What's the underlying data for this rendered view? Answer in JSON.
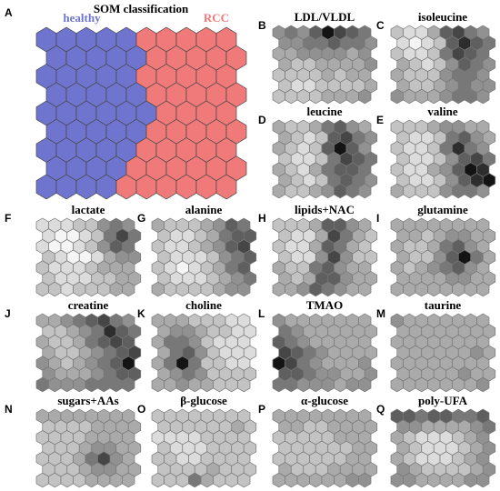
{
  "title": "SOM classification",
  "classification": {
    "letter": "A",
    "classes": [
      {
        "name": "healthy",
        "color": "#6f75cf"
      },
      {
        "name": "RCC",
        "color": "#f07a7a"
      }
    ],
    "grid": [
      [
        0,
        0,
        0,
        0,
        0,
        1,
        1,
        1,
        1,
        1
      ],
      [
        0,
        0,
        0,
        0,
        0,
        1,
        1,
        1,
        1,
        1
      ],
      [
        0,
        0,
        0,
        0,
        0,
        1,
        1,
        1,
        1,
        1
      ],
      [
        0,
        0,
        0,
        0,
        0,
        1,
        1,
        1,
        1,
        1
      ],
      [
        0,
        0,
        0,
        0,
        0,
        0,
        1,
        1,
        1,
        1
      ],
      [
        0,
        0,
        0,
        0,
        0,
        1,
        1,
        1,
        1,
        1
      ],
      [
        0,
        0,
        0,
        0,
        0,
        1,
        1,
        1,
        1,
        1
      ],
      [
        0,
        0,
        0,
        0,
        1,
        1,
        1,
        1,
        1,
        1
      ],
      [
        0,
        0,
        0,
        0,
        1,
        1,
        1,
        1,
        1,
        1
      ]
    ]
  },
  "panels": [
    {
      "letter": "B",
      "title": "LDL/VLDL",
      "shades": [
        [
          4,
          5,
          4,
          6,
          9,
          7,
          6,
          5
        ],
        [
          4,
          4,
          5,
          5,
          6,
          5,
          5,
          4
        ],
        [
          3,
          3,
          4,
          4,
          4,
          4,
          3,
          4
        ],
        [
          3,
          2,
          2,
          3,
          3,
          3,
          3,
          4
        ],
        [
          2,
          2,
          2,
          2,
          3,
          2,
          3,
          3
        ],
        [
          2,
          1,
          1,
          2,
          2,
          2,
          2,
          3
        ],
        [
          2,
          2,
          2,
          2,
          3,
          3,
          3,
          4
        ]
      ]
    },
    {
      "letter": "C",
      "title": "isoleucine",
      "shades": [
        [
          2,
          1,
          1,
          3,
          6,
          7,
          5,
          4
        ],
        [
          1,
          0,
          1,
          2,
          6,
          8,
          6,
          5
        ],
        [
          2,
          1,
          1,
          2,
          5,
          7,
          6,
          5
        ],
        [
          3,
          2,
          1,
          2,
          4,
          6,
          5,
          4
        ],
        [
          3,
          2,
          2,
          2,
          4,
          5,
          5,
          4
        ],
        [
          3,
          2,
          2,
          3,
          4,
          5,
          4,
          4
        ],
        [
          4,
          3,
          3,
          3,
          4,
          5,
          5,
          4
        ]
      ]
    },
    {
      "letter": "D",
      "title": "leucine",
      "shades": [
        [
          3,
          2,
          2,
          3,
          5,
          6,
          4,
          3
        ],
        [
          3,
          2,
          1,
          2,
          6,
          7,
          5,
          4
        ],
        [
          3,
          2,
          1,
          2,
          6,
          9,
          6,
          4
        ],
        [
          2,
          1,
          1,
          2,
          5,
          7,
          6,
          5
        ],
        [
          3,
          2,
          1,
          3,
          5,
          6,
          6,
          5
        ],
        [
          3,
          2,
          1,
          2,
          5,
          6,
          5,
          4
        ],
        [
          3,
          2,
          2,
          3,
          4,
          6,
          5,
          4
        ]
      ]
    },
    {
      "letter": "E",
      "title": "valine",
      "shades": [
        [
          2,
          2,
          2,
          3,
          4,
          4,
          3,
          3
        ],
        [
          2,
          1,
          1,
          2,
          5,
          6,
          4,
          3
        ],
        [
          2,
          1,
          1,
          2,
          5,
          8,
          5,
          4
        ],
        [
          2,
          1,
          1,
          2,
          4,
          6,
          7,
          5
        ],
        [
          2,
          1,
          1,
          3,
          4,
          6,
          9,
          8
        ],
        [
          2,
          1,
          1,
          2,
          4,
          6,
          8,
          9
        ],
        [
          3,
          2,
          2,
          2,
          4,
          5,
          5,
          4
        ]
      ]
    },
    {
      "letter": "F",
      "title": "lactate",
      "shades": [
        [
          1,
          1,
          1,
          2,
          2,
          4,
          5,
          4
        ],
        [
          1,
          0,
          0,
          1,
          2,
          5,
          7,
          5
        ],
        [
          1,
          0,
          0,
          1,
          2,
          4,
          6,
          5
        ],
        [
          2,
          1,
          0,
          0,
          1,
          3,
          4,
          4
        ],
        [
          2,
          1,
          1,
          1,
          2,
          3,
          3,
          3
        ],
        [
          2,
          1,
          1,
          1,
          2,
          2,
          3,
          3
        ],
        [
          2,
          2,
          1,
          2,
          2,
          2,
          3,
          3
        ]
      ]
    },
    {
      "letter": "G",
      "title": "alanine",
      "shades": [
        [
          3,
          2,
          2,
          2,
          3,
          4,
          6,
          5
        ],
        [
          2,
          1,
          1,
          2,
          3,
          5,
          6,
          6
        ],
        [
          2,
          1,
          1,
          2,
          3,
          4,
          6,
          7
        ],
        [
          2,
          1,
          1,
          1,
          2,
          4,
          5,
          6
        ],
        [
          2,
          1,
          0,
          1,
          2,
          3,
          5,
          6
        ],
        [
          2,
          1,
          1,
          1,
          2,
          3,
          4,
          5
        ],
        [
          3,
          2,
          2,
          2,
          2,
          3,
          4,
          4
        ]
      ]
    },
    {
      "letter": "H",
      "title": "lipids+NAC",
      "shades": [
        [
          2,
          2,
          2,
          3,
          6,
          6,
          4,
          3
        ],
        [
          2,
          1,
          1,
          3,
          7,
          5,
          3,
          2
        ],
        [
          2,
          1,
          1,
          3,
          6,
          5,
          3,
          2
        ],
        [
          2,
          1,
          1,
          4,
          7,
          4,
          2,
          2
        ],
        [
          3,
          2,
          2,
          5,
          6,
          4,
          3,
          3
        ],
        [
          3,
          2,
          3,
          6,
          6,
          4,
          3,
          3
        ],
        [
          3,
          3,
          4,
          6,
          5,
          4,
          3,
          3
        ]
      ]
    },
    {
      "letter": "I",
      "title": "glutamine",
      "shades": [
        [
          3,
          3,
          3,
          3,
          3,
          3,
          3,
          3
        ],
        [
          3,
          3,
          2,
          3,
          4,
          4,
          3,
          3
        ],
        [
          3,
          2,
          2,
          3,
          5,
          6,
          4,
          3
        ],
        [
          3,
          2,
          2,
          4,
          6,
          9,
          5,
          3
        ],
        [
          3,
          2,
          3,
          4,
          5,
          6,
          4,
          3
        ],
        [
          3,
          3,
          3,
          3,
          4,
          4,
          3,
          3
        ],
        [
          3,
          3,
          3,
          3,
          3,
          3,
          3,
          3
        ]
      ]
    },
    {
      "letter": "J",
      "title": "creatine",
      "shades": [
        [
          3,
          3,
          4,
          5,
          6,
          7,
          5,
          4
        ],
        [
          2,
          2,
          3,
          4,
          5,
          8,
          6,
          5
        ],
        [
          3,
          2,
          2,
          3,
          5,
          6,
          7,
          6
        ],
        [
          3,
          2,
          2,
          3,
          4,
          5,
          6,
          7
        ],
        [
          4,
          3,
          2,
          3,
          4,
          5,
          6,
          9
        ],
        [
          4,
          3,
          3,
          3,
          4,
          5,
          6,
          6
        ],
        [
          5,
          4,
          4,
          4,
          5,
          5,
          5,
          5
        ]
      ]
    },
    {
      "letter": "K",
      "title": "choline",
      "shades": [
        [
          3,
          3,
          3,
          2,
          2,
          2,
          1,
          1
        ],
        [
          3,
          4,
          4,
          3,
          2,
          2,
          1,
          1
        ],
        [
          3,
          5,
          5,
          4,
          2,
          1,
          1,
          1
        ],
        [
          3,
          5,
          6,
          4,
          2,
          1,
          1,
          1
        ],
        [
          3,
          5,
          9,
          5,
          2,
          2,
          1,
          1
        ],
        [
          3,
          4,
          5,
          4,
          2,
          2,
          2,
          2
        ],
        [
          3,
          3,
          4,
          3,
          3,
          2,
          2,
          2
        ]
      ]
    },
    {
      "letter": "L",
      "title": "TMAO",
      "shades": [
        [
          4,
          3,
          3,
          3,
          3,
          3,
          3,
          3
        ],
        [
          5,
          4,
          3,
          3,
          3,
          3,
          3,
          3
        ],
        [
          6,
          5,
          4,
          3,
          3,
          3,
          3,
          3
        ],
        [
          7,
          6,
          5,
          4,
          3,
          3,
          3,
          3
        ],
        [
          9,
          7,
          5,
          4,
          3,
          3,
          3,
          4
        ],
        [
          6,
          6,
          5,
          4,
          4,
          3,
          3,
          4
        ],
        [
          5,
          5,
          4,
          4,
          4,
          3,
          4,
          4
        ]
      ]
    },
    {
      "letter": "M",
      "title": "taurine",
      "shades": [
        [
          4,
          3,
          3,
          3,
          3,
          3,
          3,
          3
        ],
        [
          3,
          3,
          3,
          3,
          3,
          3,
          3,
          3
        ],
        [
          3,
          3,
          3,
          3,
          3,
          3,
          3,
          3
        ],
        [
          3,
          3,
          3,
          3,
          3,
          3,
          4,
          3
        ],
        [
          3,
          3,
          3,
          3,
          3,
          3,
          3,
          3
        ],
        [
          3,
          3,
          3,
          3,
          3,
          4,
          3,
          3
        ],
        [
          3,
          3,
          3,
          3,
          3,
          3,
          3,
          4
        ]
      ]
    },
    {
      "letter": "N",
      "title": "sugars+AAs",
      "shades": [
        [
          3,
          3,
          3,
          3,
          3,
          3,
          3,
          3
        ],
        [
          2,
          2,
          2,
          2,
          3,
          3,
          3,
          3
        ],
        [
          2,
          2,
          2,
          2,
          3,
          3,
          3,
          3
        ],
        [
          2,
          2,
          2,
          3,
          4,
          4,
          3,
          3
        ],
        [
          2,
          2,
          2,
          3,
          5,
          7,
          4,
          3
        ],
        [
          2,
          2,
          2,
          3,
          4,
          4,
          3,
          3
        ],
        [
          2,
          2,
          2,
          2,
          3,
          3,
          3,
          3
        ]
      ]
    },
    {
      "letter": "O",
      "title": "β-glucose",
      "shades": [
        [
          2,
          2,
          2,
          2,
          2,
          2,
          2,
          2
        ],
        [
          2,
          2,
          2,
          2,
          2,
          2,
          3,
          2
        ],
        [
          1,
          1,
          1,
          1,
          2,
          2,
          2,
          2
        ],
        [
          2,
          1,
          1,
          1,
          2,
          2,
          2,
          2
        ],
        [
          2,
          2,
          1,
          1,
          2,
          2,
          2,
          2
        ],
        [
          2,
          2,
          2,
          2,
          3,
          2,
          2,
          2
        ],
        [
          2,
          2,
          2,
          5,
          3,
          2,
          2,
          2
        ]
      ]
    },
    {
      "letter": "P",
      "title": "α-glucose",
      "shades": [
        [
          3,
          3,
          3,
          3,
          3,
          3,
          3,
          3
        ],
        [
          3,
          3,
          2,
          2,
          3,
          3,
          3,
          3
        ],
        [
          2,
          2,
          2,
          2,
          2,
          3,
          3,
          3
        ],
        [
          2,
          2,
          2,
          2,
          2,
          2,
          3,
          3
        ],
        [
          2,
          2,
          2,
          2,
          2,
          2,
          3,
          3
        ],
        [
          3,
          2,
          2,
          2,
          3,
          3,
          3,
          3
        ],
        [
          3,
          3,
          3,
          3,
          3,
          3,
          4,
          4
        ]
      ]
    },
    {
      "letter": "Q",
      "title": "poly-UFA",
      "shades": [
        [
          6,
          6,
          5,
          6,
          6,
          5,
          5,
          6
        ],
        [
          4,
          4,
          3,
          3,
          3,
          3,
          4,
          5
        ],
        [
          3,
          2,
          1,
          1,
          1,
          2,
          3,
          4
        ],
        [
          3,
          2,
          1,
          1,
          1,
          2,
          3,
          4
        ],
        [
          3,
          2,
          1,
          1,
          1,
          2,
          3,
          4
        ],
        [
          4,
          3,
          2,
          2,
          2,
          2,
          3,
          4
        ],
        [
          4,
          4,
          3,
          3,
          3,
          3,
          4,
          4
        ]
      ]
    }
  ]
}
